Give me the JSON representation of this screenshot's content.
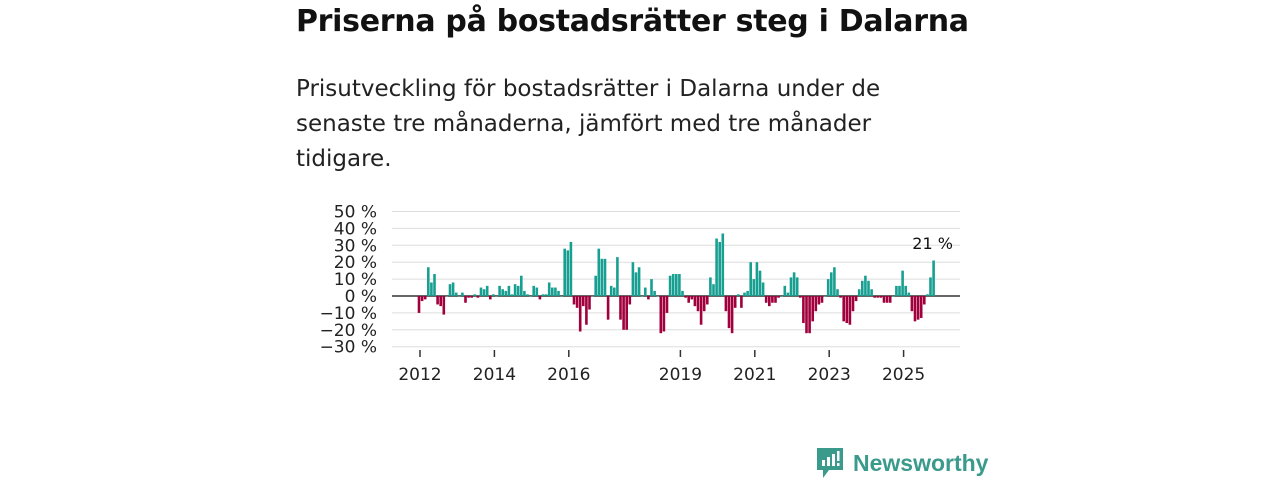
{
  "title": "Priserna på bostadsrätter steg i Dalarna",
  "subtitle": "Prisutveckling för bostadsrätter i Dalarna under de senaste tre månaderna, jämfört med tre månader tidigare.",
  "brand": "Newsworthy",
  "colors": {
    "positive": "#17a091",
    "negative": "#a0003c",
    "brand": "#3a9a8c",
    "grid": "#dddddd",
    "zero": "#333333"
  },
  "chart_data": {
    "type": "bar",
    "title": "Priserna på bostadsrätter steg i Dalarna",
    "xlabel": "",
    "ylabel": "",
    "unit": "%",
    "start_month": "2012-01",
    "frequency": "monthly",
    "ylim": [
      -30,
      50
    ],
    "yticks": [
      50,
      40,
      30,
      20,
      10,
      0,
      -10,
      -20,
      -30
    ],
    "ytick_labels": [
      "50 %",
      "40 %",
      "30 %",
      "20 %",
      "10 %",
      "0 %",
      "−10 %",
      "−20 %",
      "−30 %"
    ],
    "xticks": [
      {
        "label": "2012",
        "month_index": 0
      },
      {
        "label": "2014",
        "month_index": 24
      },
      {
        "label": "2016",
        "month_index": 48
      },
      {
        "label": "2019",
        "month_index": 84
      },
      {
        "label": "2021",
        "month_index": 108
      },
      {
        "label": "2023",
        "month_index": 132
      },
      {
        "label": "2025",
        "month_index": 156
      }
    ],
    "grid": true,
    "annotation": {
      "text": "21 %",
      "month_index": 166
    },
    "values": [
      -10,
      -3,
      -2,
      17,
      8,
      13,
      -5,
      -6,
      -11,
      0,
      7,
      8,
      2,
      0,
      2,
      -4,
      -1,
      -1,
      1,
      -1,
      5,
      4,
      6,
      -2,
      1,
      0,
      6,
      4,
      3,
      6,
      1,
      7,
      6,
      12,
      3,
      1,
      0,
      6,
      5,
      -2,
      1,
      1,
      8,
      5,
      5,
      3,
      0,
      28,
      27,
      32,
      -5,
      -7,
      -21,
      -6,
      -17,
      -8,
      0,
      12,
      28,
      22,
      22,
      -14,
      6,
      5,
      23,
      -14,
      -20,
      -20,
      -5,
      20,
      14,
      17,
      0,
      5,
      -2,
      10,
      3,
      0,
      -22,
      -21,
      -10,
      12,
      13,
      13,
      13,
      3,
      -1,
      -4,
      -2,
      -6,
      -9,
      -17,
      -9,
      -5,
      11,
      7,
      34,
      32,
      37,
      -9,
      -19,
      -22,
      -7,
      1,
      -7,
      2,
      3,
      20,
      10,
      20,
      15,
      8,
      -4,
      -6,
      -4,
      -4,
      -1,
      0,
      6,
      2,
      11,
      14,
      11,
      -1,
      -16,
      -22,
      -22,
      -15,
      -9,
      -5,
      -4,
      0,
      10,
      14,
      17,
      4,
      -1,
      -15,
      -16,
      -17,
      -9,
      -3,
      4,
      9,
      12,
      9,
      4,
      -1,
      -1,
      -1,
      -4,
      -4,
      -4,
      0,
      6,
      6,
      15,
      6,
      2,
      -9,
      -15,
      -14,
      -13,
      -5,
      1,
      11,
      21
    ]
  }
}
